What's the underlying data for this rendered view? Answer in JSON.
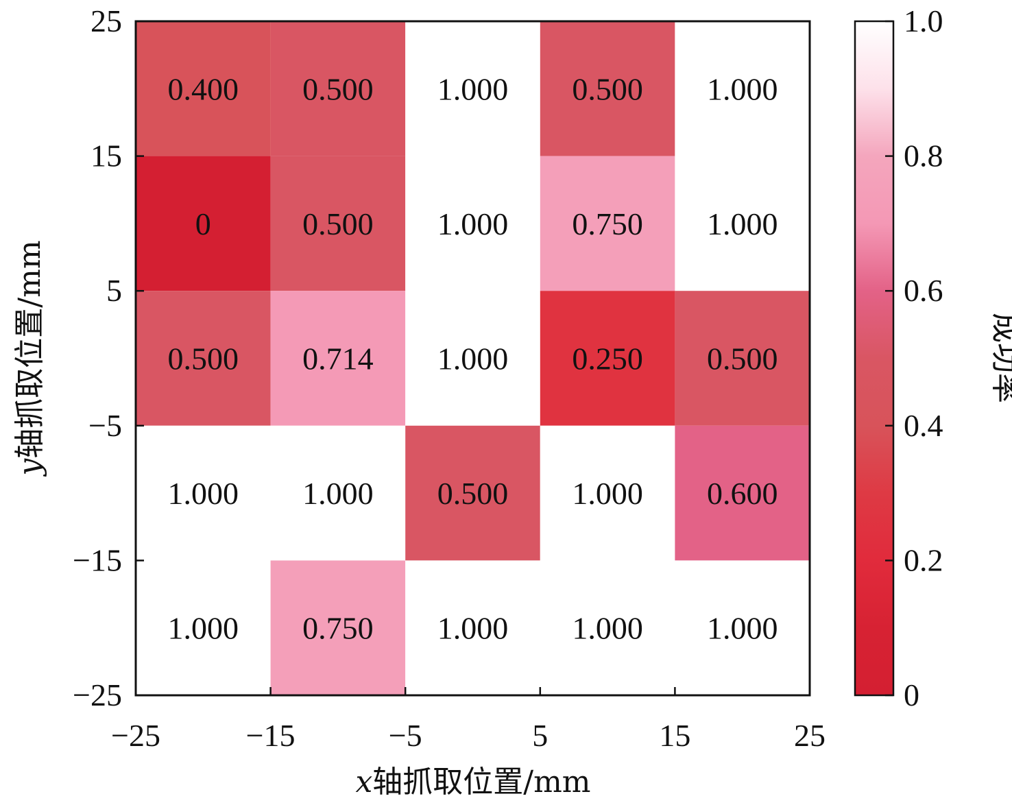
{
  "chart_data": {
    "type": "heatmap",
    "xlabel_var": "x",
    "xlabel_rest": "轴抓取位置/mm",
    "ylabel_var": "y",
    "ylabel_rest": "轴抓取位置/mm",
    "colorbar_label": "成功率",
    "x_edges": [
      -25,
      -15,
      -5,
      5,
      15,
      25
    ],
    "y_edges": [
      -25,
      -15,
      -5,
      5,
      15,
      25
    ],
    "x_tick_labels": [
      "−25",
      "−15",
      "−5",
      "5",
      "15",
      "25"
    ],
    "y_tick_labels": [
      "−25",
      "−15",
      "−5",
      "5",
      "15",
      "25"
    ],
    "rows_top_to_bottom": [
      {
        "values": [
          0.4,
          0.5,
          1.0,
          0.5,
          1.0
        ],
        "labels": [
          "0.400",
          "0.500",
          "1.000",
          "0.500",
          "1.000"
        ]
      },
      {
        "values": [
          0.0,
          0.5,
          1.0,
          0.75,
          1.0
        ],
        "labels": [
          "0",
          "0.500",
          "1.000",
          "0.750",
          "1.000"
        ]
      },
      {
        "values": [
          0.5,
          0.714,
          1.0,
          0.25,
          0.5
        ],
        "labels": [
          "0.500",
          "0.714",
          "1.000",
          "0.250",
          "0.500"
        ]
      },
      {
        "values": [
          1.0,
          1.0,
          0.5,
          1.0,
          0.6
        ],
        "labels": [
          "1.000",
          "1.000",
          "0.500",
          "1.000",
          "0.600"
        ]
      },
      {
        "values": [
          1.0,
          0.75,
          1.0,
          1.0,
          1.0
        ],
        "labels": [
          "1.000",
          "0.750",
          "1.000",
          "1.000",
          "1.000"
        ]
      }
    ],
    "colorbar": {
      "range": [
        0,
        1
      ],
      "ticks": [
        0,
        0.2,
        0.4,
        0.6,
        0.8,
        1.0
      ],
      "tick_labels": [
        "0",
        "0.2",
        "0.4",
        "0.6",
        "0.8",
        "1.0"
      ]
    },
    "colormap": [
      {
        "v": 0.0,
        "color": "#d41f32"
      },
      {
        "v": 0.1,
        "color": "#d72233"
      },
      {
        "v": 0.2,
        "color": "#e12b3c"
      },
      {
        "v": 0.3,
        "color": "#de3a44"
      },
      {
        "v": 0.4,
        "color": "#d8535a"
      },
      {
        "v": 0.5,
        "color": "#d95663"
      },
      {
        "v": 0.6,
        "color": "#e36287"
      },
      {
        "v": 0.7,
        "color": "#f498b5"
      },
      {
        "v": 0.8,
        "color": "#f4a6bd"
      },
      {
        "v": 0.9,
        "color": "#fde1ea"
      },
      {
        "v": 1.0,
        "color": "#ffffff"
      }
    ]
  }
}
